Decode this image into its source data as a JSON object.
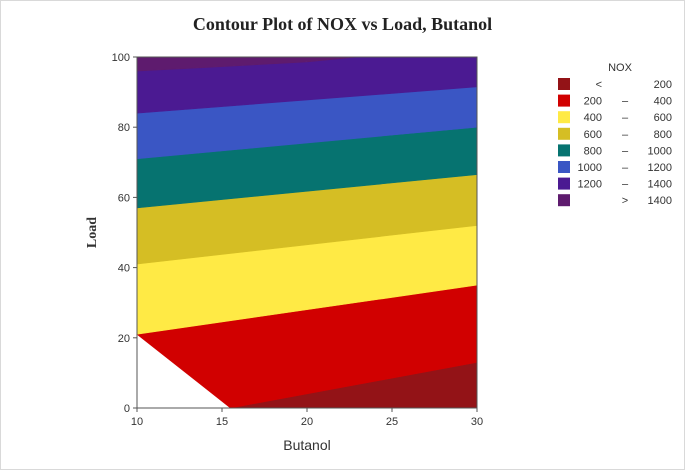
{
  "chart_data": {
    "type": "contour",
    "title": "Contour Plot of NOX vs Load, Butanol",
    "xlabel": "Butanol",
    "ylabel": "Load",
    "xlim": [
      10,
      30
    ],
    "ylim": [
      0,
      100
    ],
    "xticks": [
      "10",
      "15",
      "20",
      "25",
      "30"
    ],
    "yticks": [
      "0",
      "20",
      "40",
      "60",
      "80",
      "100"
    ],
    "legend_title": "NOX",
    "legend_placement": "right",
    "levels": [
      {
        "name": "< 200",
        "low": "<",
        "mid": "",
        "high": "200",
        "color": "#931317",
        "upper": [
          [
            15.5,
            0
          ],
          [
            30,
            13
          ]
        ]
      },
      {
        "name": "200 – 400",
        "low": "200",
        "mid": "–",
        "high": "400",
        "color": "#d10000",
        "upper": [
          [
            10,
            21
          ],
          [
            30,
            35
          ]
        ]
      },
      {
        "name": "400 – 600",
        "low": "400",
        "mid": "–",
        "high": "600",
        "color": "#ffea45",
        "upper": [
          [
            10,
            41
          ],
          [
            30,
            52
          ]
        ]
      },
      {
        "name": "600 – 800",
        "low": "600",
        "mid": "–",
        "high": "800",
        "color": "#d5be24",
        "upper": [
          [
            10,
            57
          ],
          [
            30,
            66.5
          ]
        ]
      },
      {
        "name": "800 – 1000",
        "low": "800",
        "mid": "–",
        "high": "1000",
        "color": "#067370",
        "upper": [
          [
            10,
            71
          ],
          [
            30,
            80
          ]
        ]
      },
      {
        "name": "1000 – 1200",
        "low": "1000",
        "mid": "–",
        "high": "1200",
        "color": "#3a56c4",
        "upper": [
          [
            10,
            84
          ],
          [
            30,
            91.5
          ]
        ]
      },
      {
        "name": "1200 – 1400",
        "low": "1200",
        "mid": "–",
        "high": "1400",
        "color": "#4b1a92",
        "upper": [
          [
            10,
            96
          ],
          [
            14,
            97
          ],
          [
            20,
            98.6
          ],
          [
            23,
            100
          ],
          [
            30,
            100
          ]
        ]
      },
      {
        "name": "> 1400",
        "low": "",
        "mid": ">",
        "high": "1400",
        "color": "#5e1b6e",
        "upper": [
          [
            10,
            100
          ],
          [
            30,
            100
          ]
        ]
      }
    ]
  }
}
